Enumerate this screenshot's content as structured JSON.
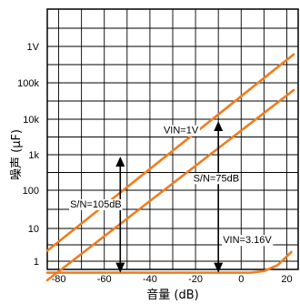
{
  "chart_data": {
    "type": "line",
    "xlabel": "音量 (dB)",
    "ylabel": "噪声 (μF)",
    "xlim": [
      -85,
      25
    ],
    "x_ticks": [
      -80,
      -60,
      -40,
      -20,
      0,
      20
    ],
    "y_ticks": [
      "1",
      "10",
      "100",
      "1k",
      "10k",
      "100k",
      "1V"
    ],
    "grid": true,
    "series": [
      {
        "x": [
          -85,
          23
        ],
        "y_decade": [
          0.32,
          5.78
        ],
        "color": "#f07d1e"
      },
      {
        "x": [
          -85,
          23
        ],
        "y_decade": [
          -0.58,
          4.8
        ],
        "color": "#f07d1e"
      },
      {
        "x": [
          -85,
          4,
          10,
          16,
          22
        ],
        "y_decade": [
          -0.35,
          -0.35,
          -0.3,
          -0.12,
          0.28
        ],
        "color": "#f07d1e"
      }
    ],
    "annotations": [
      {
        "text": "VIN=1V",
        "x": -34,
        "y_decade": 3.6
      },
      {
        "text": "S/N=75dB",
        "x": -21,
        "y_decade": 2.25
      },
      {
        "text": "S/N=105dB",
        "x": -75,
        "y_decade": 1.55
      },
      {
        "text": "VIN=3.16V",
        "x": -8,
        "y_decade": 0.55
      }
    ],
    "arrows": [
      {
        "x": -53,
        "from_decade": -0.35,
        "to_decade": 2.95
      },
      {
        "x": -10,
        "from_decade": -0.35,
        "to_decade": 3.95
      }
    ]
  }
}
